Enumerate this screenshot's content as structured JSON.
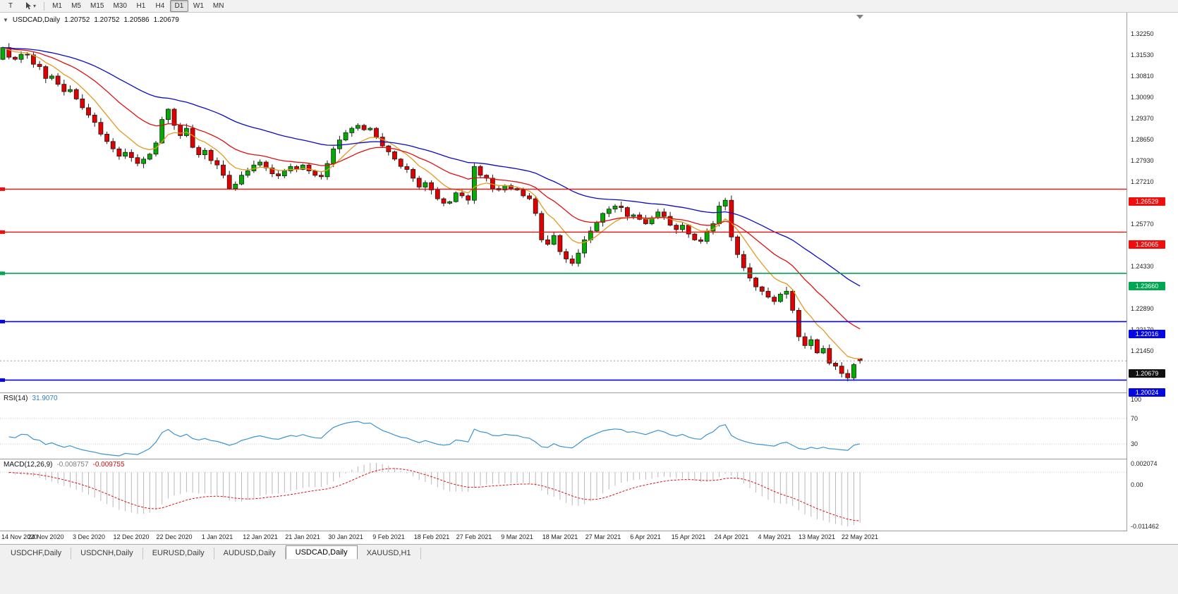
{
  "icons": {
    "collapse": "▼",
    "caret": "▾"
  },
  "toolbar": {
    "chart_type_label": "T",
    "timeframes": [
      "M1",
      "M5",
      "M15",
      "M30",
      "H1",
      "H4",
      "D1",
      "W1",
      "MN"
    ],
    "active_timeframe": "D1"
  },
  "chart_header": {
    "symbol_label": "USDCAD,Daily",
    "ohlc": [
      "1.20752",
      "1.20752",
      "1.20586",
      "1.20679"
    ]
  },
  "price_scale": {
    "ticks": [
      "1.32250",
      "1.31530",
      "1.30810",
      "1.30090",
      "1.29370",
      "1.28650",
      "1.27930",
      "1.27210",
      "1.26490",
      "1.25770",
      "1.25050",
      "1.24330",
      "1.23610",
      "1.22890",
      "1.22170",
      "1.21450",
      "1.20730",
      "1.20010"
    ]
  },
  "panels": {
    "rsi": {
      "label": "RSI(14)",
      "value": "31.9070",
      "scale": [
        "100",
        "70",
        "30"
      ]
    },
    "macd": {
      "label": "MACD(12,26,9)",
      "value_main": "-0.008757",
      "value_signal": "-0.009755",
      "scale_top": "0.002074",
      "scale_zero": "0.00",
      "scale_bottom": "-0.011462"
    }
  },
  "time_axis": {
    "dates": [
      "14 Nov 2020",
      "24 Nov 2020",
      "3 Dec 2020",
      "12 Dec 2020",
      "22 Dec 2020",
      "1 Jan 2021",
      "12 Jan 2021",
      "21 Jan 2021",
      "30 Jan 2021",
      "9 Feb 2021",
      "18 Feb 2021",
      "27 Feb 2021",
      "9 Mar 2021",
      "18 Mar 2021",
      "27 Mar 2021",
      "6 Apr 2021",
      "15 Apr 2021",
      "24 Apr 2021",
      "4 May 2021",
      "13 May 2021",
      "22 May 2021"
    ],
    "candles_per_label": 7
  },
  "tabs": [
    {
      "label": "USDCHF,Daily",
      "active": false
    },
    {
      "label": "USDCNH,Daily",
      "active": false
    },
    {
      "label": "EURUSD,Daily",
      "active": false
    },
    {
      "label": "AUDUSD,Daily",
      "active": false
    },
    {
      "label": "USDCAD,Daily",
      "active": true
    },
    {
      "label": "XAUUSD,H1",
      "active": false
    }
  ],
  "chart_data": [
    {
      "type": "candlestick",
      "symbol": "USDCAD",
      "timeframe": "Daily",
      "title": "USDCAD,Daily",
      "y_axis": {
        "max": 1.3225,
        "min": 1.1965,
        "tick_step": 0.0072
      },
      "colors": {
        "bull": "#00ad00",
        "bear": "#e00000",
        "outline": "#1c1c1c"
      },
      "closes": [
        1.3135,
        1.3102,
        1.3095,
        1.3112,
        1.311,
        1.3078,
        1.307,
        1.303,
        1.3038,
        1.301,
        1.2985,
        1.2992,
        1.296,
        1.293,
        1.2905,
        1.288,
        1.284,
        1.2815,
        1.279,
        1.2765,
        1.2778,
        1.276,
        1.274,
        1.2755,
        1.2772,
        1.281,
        1.289,
        1.2925,
        1.287,
        1.2835,
        1.286,
        1.2795,
        1.277,
        1.2785,
        1.275,
        1.2735,
        1.27,
        1.2655,
        1.267,
        1.27,
        1.2715,
        1.2735,
        1.2745,
        1.2725,
        1.2705,
        1.2698,
        1.2715,
        1.273,
        1.272,
        1.2735,
        1.2715,
        1.27,
        1.2695,
        1.274,
        1.279,
        1.282,
        1.2845,
        1.286,
        1.287,
        1.2855,
        1.286,
        1.283,
        1.28,
        1.278,
        1.2755,
        1.273,
        1.272,
        1.269,
        1.266,
        1.2675,
        1.265,
        1.262,
        1.2605,
        1.261,
        1.264,
        1.263,
        1.2615,
        1.273,
        1.27,
        1.269,
        1.2655,
        1.265,
        1.2665,
        1.2655,
        1.265,
        1.263,
        1.262,
        1.257,
        1.248,
        1.2465,
        1.2495,
        1.244,
        1.2415,
        1.24,
        1.2435,
        1.248,
        1.251,
        1.254,
        1.257,
        1.2585,
        1.2595,
        1.259,
        1.256,
        1.2565,
        1.255,
        1.2535,
        1.2555,
        1.2575,
        1.256,
        1.253,
        1.2515,
        1.253,
        1.25,
        1.248,
        1.2475,
        1.251,
        1.2535,
        1.2595,
        1.2615,
        1.249,
        1.243,
        1.2385,
        1.235,
        1.232,
        1.2305,
        1.2285,
        1.227,
        1.2295,
        1.2305,
        1.224,
        1.215,
        1.212,
        1.214,
        1.2095,
        1.211,
        1.206,
        1.205,
        1.2025,
        1.201,
        1.2055,
        1.20679
      ],
      "last_candle": {
        "open": 1.20752,
        "high": 1.20752,
        "low": 1.20586,
        "close": 1.20679
      },
      "moving_averages": [
        {
          "period": 8,
          "color": "#e39b1e"
        },
        {
          "period": 20,
          "color": "#e01010"
        },
        {
          "period": 45,
          "color": "#0a0ac8"
        }
      ],
      "hlines": [
        {
          "price": 1.26529,
          "label": "1.26529",
          "color": "#ef0e0e",
          "width": 1.4
        },
        {
          "price": 1.25065,
          "label": "1.25065",
          "color": "#ef0e0e",
          "width": 1.4
        },
        {
          "price": 1.2366,
          "label": "1.23660",
          "color": "#00a651",
          "width": 1.6
        },
        {
          "price": 1.22016,
          "label": "1.22016",
          "color": "#0606e0",
          "width": 1.6
        },
        {
          "price": 1.20024,
          "label": "1.20024",
          "color": "#0606e0",
          "width": 1.6
        }
      ],
      "current_price": {
        "price": 1.20679,
        "label": "1.20679",
        "color": "#111111"
      }
    },
    {
      "type": "line",
      "name": "RSI(14)",
      "current_value": 31.907,
      "levels": [
        100,
        70,
        30
      ],
      "color": "#3a94d0"
    },
    {
      "type": "macd",
      "name": "MACD(12,26,9)",
      "macd_value": -0.008757,
      "signal_value": -0.009755,
      "histogram_color": "#b9b9b9",
      "signal_color": "#e01010",
      "scale": {
        "top": 0.002074,
        "zero": 0.0,
        "bottom": -0.011462
      }
    }
  ]
}
